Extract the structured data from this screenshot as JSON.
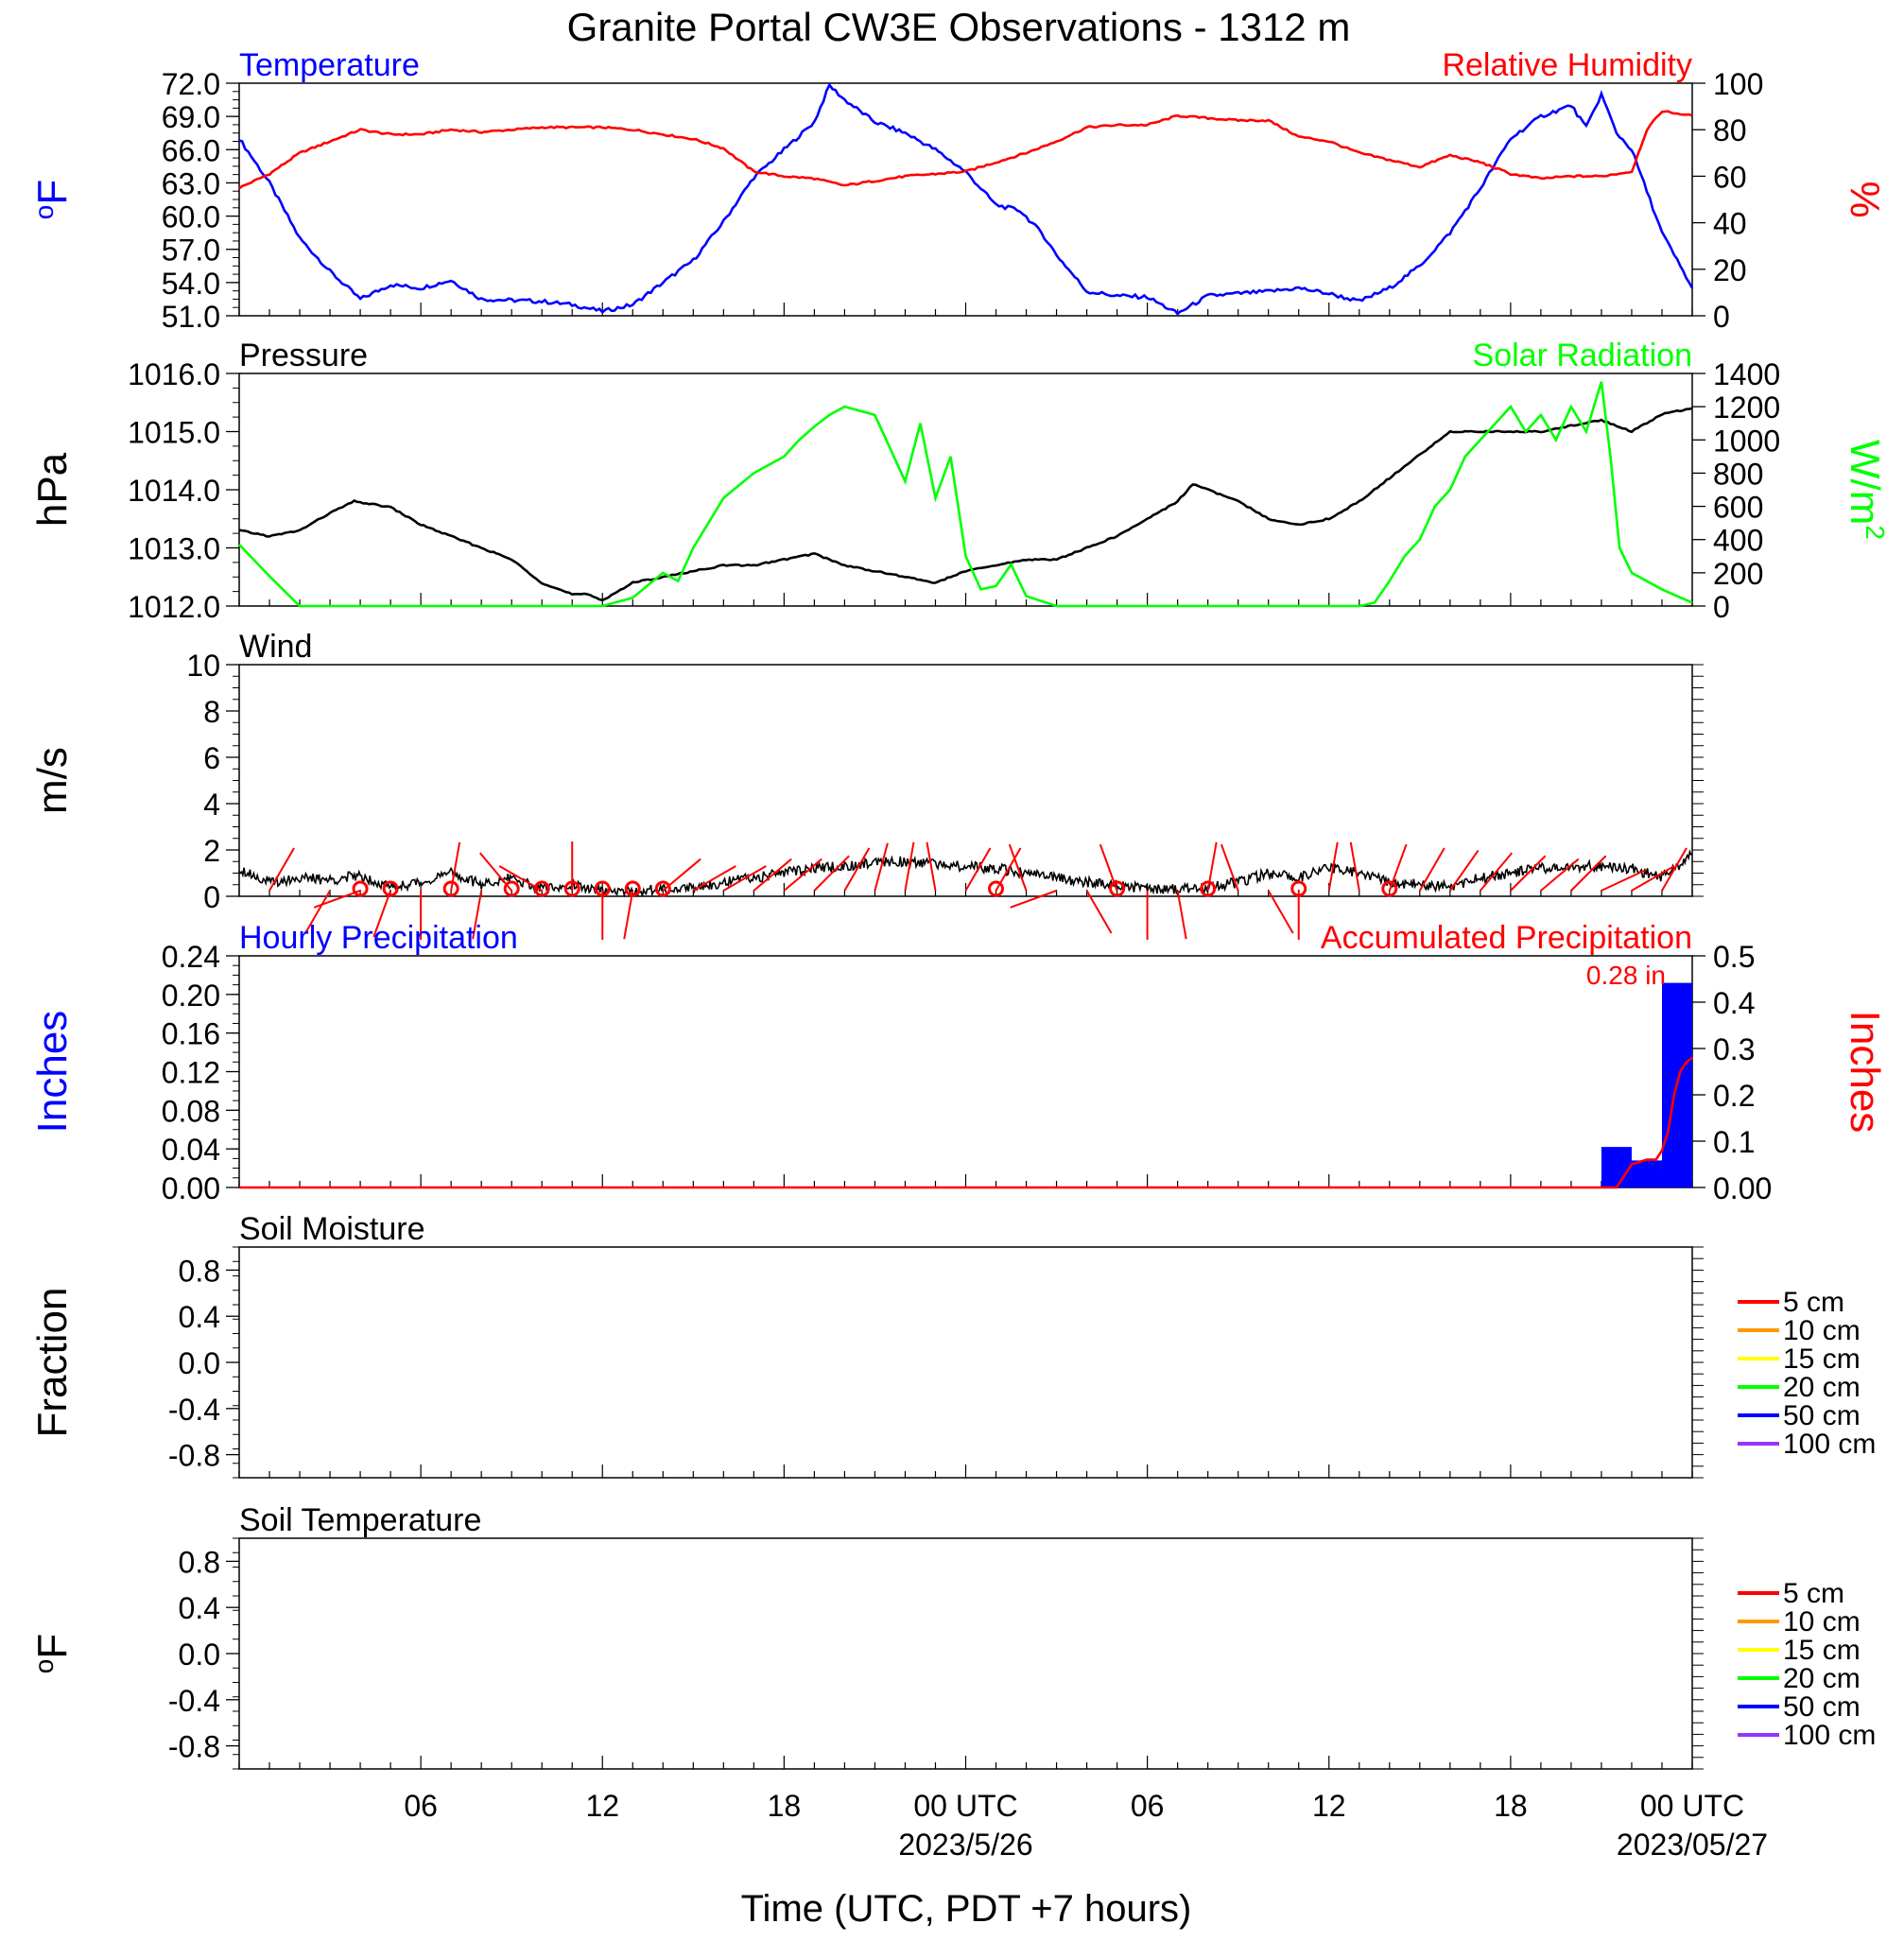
{
  "title": "Granite Portal CW3E Observations - 1312 m",
  "x_axis": {
    "label": "Time (UTC, PDT +7 hours)",
    "ticks": [
      "06",
      "12",
      "18",
      "00 UTC",
      "06",
      "12",
      "18",
      "00 UTC"
    ],
    "dates": [
      "2023/5/26",
      "2023/05/27"
    ]
  },
  "colors": {
    "temperature": "#0000ff",
    "humidity": "#ff0000",
    "pressure": "#000000",
    "solar": "#00ff00",
    "wind_speed": "#000000",
    "wind_barb": "#ff0000",
    "hourly_precip": "#0000ff",
    "accum_precip": "#ff0000",
    "soil_5cm": "#ff0000",
    "soil_10cm": "#ff9900",
    "soil_15cm": "#ffff00",
    "soil_20cm": "#00ff00",
    "soil_50cm": "#0000ff",
    "soil_100cm": "#9933ff"
  },
  "chart_data": [
    {
      "type": "line",
      "title": "Temperature / Relative Humidity",
      "left_label": "Temperature",
      "right_label": "Relative Humidity",
      "ylabel_left": "oF",
      "ylabel_right": "%",
      "ylim_left": [
        51.0,
        72.0
      ],
      "ylim_right": [
        0,
        100
      ],
      "yticks_left": [
        "72.0",
        "69.0",
        "66.0",
        "63.0",
        "60.0",
        "57.0",
        "54.0",
        "51.0"
      ],
      "yticks_right": [
        "100",
        "80",
        "60",
        "40",
        "20",
        "0"
      ],
      "x_hours": [
        0,
        48
      ],
      "series": [
        {
          "name": "Temperature",
          "axis": "left",
          "x": [
            0,
            1,
            2,
            3,
            4,
            5,
            6,
            7,
            8,
            9,
            10,
            11,
            12,
            13,
            14,
            15,
            16,
            17,
            18,
            19,
            19.5,
            20,
            21,
            22,
            23,
            24,
            25,
            25.8,
            26.5,
            27,
            28,
            29,
            30,
            31,
            32,
            33,
            34,
            35,
            36,
            37,
            38,
            39,
            40,
            41,
            42,
            43,
            44,
            44.5,
            45,
            45.5,
            46,
            47,
            48
          ],
          "y": [
            67.0,
            63.0,
            58.0,
            55.0,
            52.5,
            53.8,
            53.5,
            54.2,
            52.5,
            52.4,
            52.3,
            52.0,
            51.4,
            52.0,
            54.0,
            56.0,
            59.5,
            63.5,
            66.0,
            68.5,
            71.8,
            70.5,
            68.5,
            67.5,
            66.0,
            64.0,
            61.0,
            60.5,
            58.5,
            56.5,
            53.2,
            52.8,
            52.7,
            51.2,
            52.8,
            53.0,
            53.2,
            53.5,
            53.0,
            52.3,
            53.5,
            55.5,
            58.5,
            62.5,
            67.0,
            69.0,
            70.0,
            68.0,
            71.0,
            67.5,
            66.0,
            58.5,
            53.5
          ]
        },
        {
          "name": "Relative Humidity",
          "axis": "right",
          "x": [
            0,
            1,
            2,
            3,
            4,
            5,
            6,
            7,
            8,
            9,
            10,
            11,
            12,
            13,
            14,
            15,
            16,
            17,
            18,
            19,
            20,
            21,
            22,
            23,
            24,
            25,
            26,
            27,
            28,
            29,
            30,
            31,
            32,
            33,
            34,
            35,
            36,
            37,
            38,
            39,
            40,
            41,
            42,
            43,
            44,
            45,
            46,
            46.5,
            47,
            48
          ],
          "y": [
            55,
            61,
            70,
            75,
            80,
            78,
            78,
            80,
            79,
            80,
            81,
            81,
            81,
            80,
            78,
            76,
            72,
            62,
            60,
            59,
            56,
            58,
            60,
            61,
            62,
            66,
            70,
            75,
            81,
            82,
            82,
            86,
            85,
            84,
            84,
            77,
            75,
            70,
            67,
            64,
            69,
            66,
            61,
            59,
            60,
            60,
            62,
            80,
            88,
            86
          ]
        }
      ]
    },
    {
      "type": "line",
      "title": "Pressure / Solar Radiation",
      "left_label": "Pressure",
      "right_label": "Solar Radiation",
      "ylabel_left": "hPa",
      "ylabel_right": "W/m2",
      "ylim_left": [
        1012.0,
        1016.0
      ],
      "ylim_right": [
        0,
        1400
      ],
      "yticks_left": [
        "1016.0",
        "1015.0",
        "1014.0",
        "1013.0",
        "1012.0"
      ],
      "yticks_right": [
        "1400",
        "1200",
        "1000",
        "800",
        "600",
        "400",
        "200",
        "0"
      ],
      "series": [
        {
          "name": "Pressure",
          "axis": "left",
          "x": [
            0,
            1,
            2,
            3,
            3.8,
            5,
            6,
            7,
            8,
            9,
            10,
            11,
            11.5,
            12,
            13,
            14,
            15,
            16,
            17,
            18,
            19,
            20,
            21,
            22,
            23,
            24,
            25,
            26,
            27,
            28,
            29,
            30,
            31,
            31.5,
            32,
            33,
            34,
            35,
            36,
            37,
            38,
            39,
            40,
            41,
            42,
            43,
            44,
            45,
            46,
            47,
            48
          ],
          "y": [
            1013.3,
            1013.2,
            1013.3,
            1013.6,
            1013.8,
            1013.7,
            1013.4,
            1013.2,
            1013.0,
            1012.8,
            1012.4,
            1012.2,
            1012.2,
            1012.1,
            1012.4,
            1012.5,
            1012.6,
            1012.7,
            1012.7,
            1012.8,
            1012.9,
            1012.7,
            1012.6,
            1012.5,
            1012.4,
            1012.6,
            1012.7,
            1012.8,
            1012.8,
            1013.0,
            1013.2,
            1013.5,
            1013.8,
            1014.1,
            1014.0,
            1013.8,
            1013.5,
            1013.4,
            1013.5,
            1013.8,
            1014.2,
            1014.6,
            1015.0,
            1015.0,
            1015.0,
            1015.0,
            1015.1,
            1015.2,
            1015.0,
            1015.3,
            1015.4
          ]
        },
        {
          "name": "Solar Radiation",
          "axis": "right",
          "x": [
            0,
            1,
            2,
            3,
            6,
            9,
            11,
            12,
            13,
            14,
            14.5,
            15,
            16,
            17,
            18,
            18.5,
            19,
            19.5,
            20,
            21,
            22,
            22.5,
            23,
            23.5,
            24,
            24.5,
            25,
            25.5,
            26,
            27,
            30,
            33,
            36,
            37,
            37.5,
            38,
            38.5,
            39,
            39.5,
            40,
            40.5,
            41,
            41.5,
            42,
            42.5,
            43,
            43.5,
            44,
            44.5,
            45,
            45.3,
            45.6,
            46,
            47,
            48
          ],
          "y": [
            370,
            180,
            0,
            0,
            0,
            0,
            0,
            0,
            50,
            200,
            150,
            350,
            650,
            800,
            900,
            1000,
            1080,
            1150,
            1200,
            1150,
            750,
            1100,
            650,
            900,
            300,
            100,
            120,
            250,
            60,
            0,
            0,
            0,
            0,
            0,
            20,
            150,
            300,
            400,
            600,
            700,
            900,
            1000,
            1100,
            1200,
            1050,
            1150,
            1000,
            1200,
            1050,
            1350,
            900,
            350,
            200,
            100,
            20
          ]
        }
      ]
    },
    {
      "type": "line",
      "title": "Wind",
      "left_label": "Wind",
      "ylabel_left": "m/s",
      "ylim_left": [
        0,
        10
      ],
      "yticks_left": [
        "10",
        "8",
        "6",
        "4",
        "2",
        "0"
      ],
      "series": [
        {
          "name": "Wind",
          "axis": "left",
          "x": [
            0,
            1,
            2,
            3,
            4,
            5,
            6,
            7,
            8,
            9,
            10,
            11,
            12,
            13,
            14,
            15,
            16,
            17,
            18,
            19,
            20,
            21,
            22,
            23,
            24,
            25,
            26,
            27,
            28,
            29,
            30,
            31,
            32,
            33,
            34,
            35,
            36,
            37,
            38,
            39,
            40,
            41,
            42,
            43,
            44,
            45,
            46,
            47,
            48
          ],
          "y": [
            1.2,
            0.6,
            0.8,
            0.7,
            0.9,
            0.4,
            0.6,
            1.0,
            0.5,
            0.8,
            0.3,
            0.5,
            0.2,
            0.2,
            0.3,
            0.4,
            0.6,
            0.8,
            1.0,
            1.2,
            1.3,
            1.5,
            1.5,
            1.4,
            1.3,
            1.2,
            1.0,
            0.8,
            0.6,
            0.5,
            0.3,
            0.3,
            0.4,
            0.6,
            1.0,
            0.8,
            1.2,
            1.0,
            0.6,
            0.5,
            0.4,
            0.8,
            1.0,
            1.2,
            1.3,
            1.3,
            1.2,
            0.8,
            1.8
          ]
        }
      ],
      "barbs": {
        "x": [
          1,
          3,
          4,
          5,
          6,
          7,
          8,
          9,
          10,
          11,
          12,
          13,
          14,
          15,
          16,
          17,
          18,
          19,
          20,
          21,
          22,
          23,
          24,
          25,
          26,
          27,
          28,
          29,
          30,
          31,
          32,
          33,
          34,
          35,
          36,
          37,
          38,
          39,
          40,
          41,
          42,
          43,
          44,
          45,
          46,
          47
        ],
        "dir_deg": [
          60,
          240,
          200,
          250,
          270,
          80,
          260,
          130,
          150,
          90,
          270,
          260,
          40,
          30,
          30,
          40,
          40,
          45,
          60,
          75,
          80,
          100,
          60,
          60,
          110,
          200,
          300,
          110,
          270,
          280,
          80,
          110,
          300,
          270,
          80,
          100,
          70,
          60,
          55,
          50,
          45,
          40,
          45,
          25,
          30,
          60
        ],
        "calm_hours": [
          4,
          5,
          7,
          9,
          10,
          11,
          12,
          13,
          14,
          25,
          29,
          32,
          35,
          38
        ]
      }
    },
    {
      "type": "bar",
      "title": "Hourly Precipitation / Accumulated Precipitation",
      "left_label": "Hourly Precipitation",
      "right_label": "Accumulated Precipitation",
      "ylabel_left": "Inches",
      "ylabel_right": "Inches",
      "ylim_left": [
        0,
        0.24
      ],
      "ylim_right": [
        0,
        0.5
      ],
      "yticks_left": [
        "0.24",
        "0.20",
        "0.16",
        "0.12",
        "0.08",
        "0.04",
        "0.00"
      ],
      "yticks_right": [
        "0.5",
        "0.4",
        "0.3",
        "0.2",
        "0.1",
        "0.00"
      ],
      "annotation": "0.28 in",
      "bars": {
        "x": [
          45,
          46,
          47
        ],
        "values": [
          0.042,
          0.028,
          0.212
        ]
      },
      "series": [
        {
          "name": "Accumulated Precipitation",
          "axis": "right",
          "x": [
            0,
            45.5,
            46.0,
            46.5,
            46.8,
            47.0,
            47.2,
            47.4,
            47.6,
            47.8,
            48.0
          ],
          "y": [
            0,
            0,
            0.05,
            0.06,
            0.06,
            0.08,
            0.12,
            0.2,
            0.25,
            0.27,
            0.28
          ]
        }
      ]
    },
    {
      "type": "line",
      "title": "Soil Moisture",
      "left_label": "Soil Moisture",
      "ylabel_left": "Fraction",
      "ylim_left": [
        -1,
        1
      ],
      "yticks_left": [
        "0.8",
        "0.4",
        "0.0",
        "-0.4",
        "-0.8"
      ],
      "legend": [
        "5 cm",
        "10 cm",
        "15 cm",
        "20 cm",
        "50 cm",
        "100 cm"
      ],
      "series": []
    },
    {
      "type": "line",
      "title": "Soil Temperature",
      "left_label": "Soil Temperature",
      "ylabel_left": "oF",
      "ylim_left": [
        -1,
        1
      ],
      "yticks_left": [
        "0.8",
        "0.4",
        "0.0",
        "-0.4",
        "-0.8"
      ],
      "legend": [
        "5 cm",
        "10 cm",
        "15 cm",
        "20 cm",
        "50 cm",
        "100 cm"
      ],
      "series": []
    }
  ]
}
